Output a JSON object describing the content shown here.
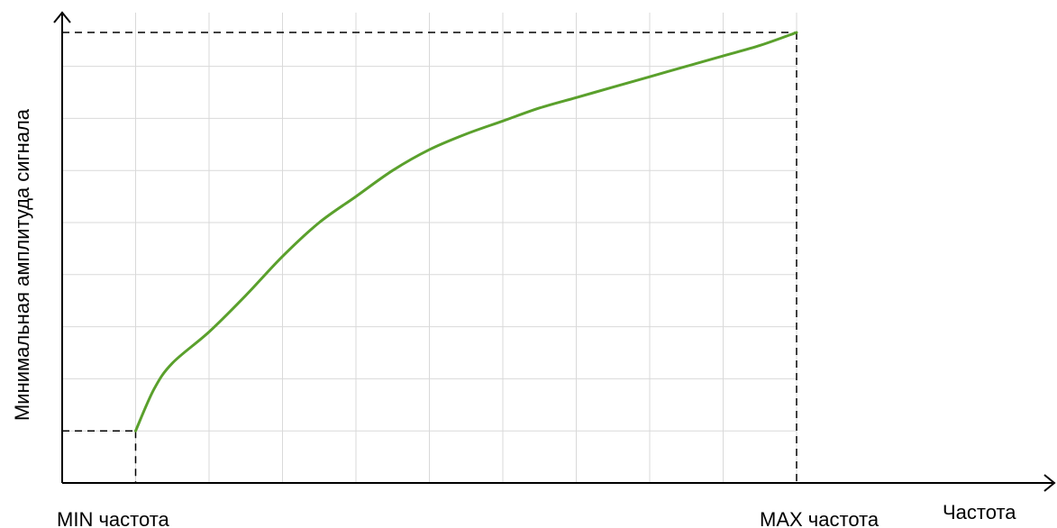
{
  "chart_data": {
    "type": "line",
    "title": "",
    "xlabel": "Частота",
    "ylabel": "Минимальная амплитуда сигнала",
    "x_tick_labels": {
      "min": "MIN частота",
      "max": "MAX частота"
    },
    "xlim": [
      0,
      11
    ],
    "ylim": [
      0,
      8.3
    ],
    "grid": true,
    "legend": "none",
    "series": [
      {
        "x": [
          1.0,
          1.25,
          1.5,
          2.0,
          2.5,
          3.0,
          3.5,
          4.0,
          4.5,
          5.0,
          5.5,
          6.0,
          6.5,
          7.0,
          7.5,
          8.0,
          8.5,
          9.0,
          9.5,
          10.0
        ],
        "y": [
          1.0,
          1.8,
          2.3,
          2.9,
          3.6,
          4.35,
          5.0,
          5.5,
          6.0,
          6.4,
          6.7,
          6.95,
          7.2,
          7.4,
          7.6,
          7.8,
          8.0,
          8.2,
          8.4,
          8.65
        ],
        "color": "#5aa02c"
      }
    ],
    "reference_points": {
      "min": {
        "x": 1.0,
        "y": 1.0
      },
      "max": {
        "x": 10.0,
        "y": 8.65
      }
    },
    "colors": {
      "line": "#5aa02c",
      "grid": "#d9d9d9",
      "axis": "#000000",
      "guide": "#000000"
    }
  }
}
